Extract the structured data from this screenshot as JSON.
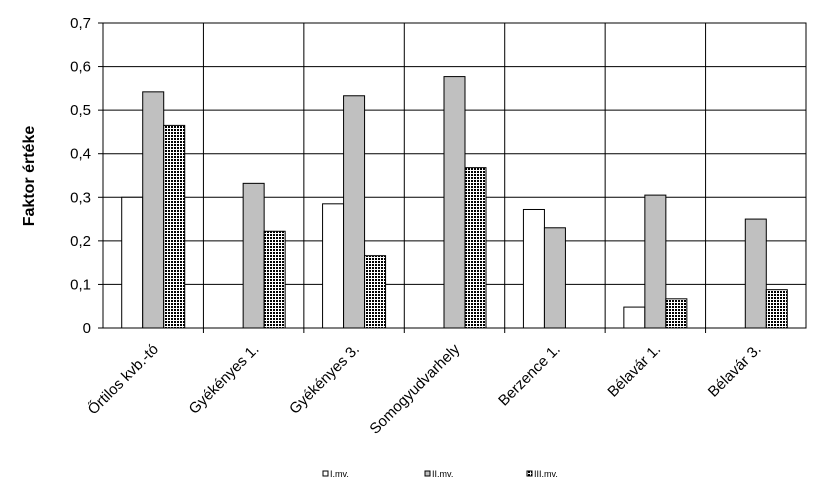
{
  "chart_data": {
    "type": "bar",
    "title": "",
    "xlabel": "",
    "ylabel": "Faktor értéke",
    "ylim": [
      0,
      0.7
    ],
    "yticks": [
      0,
      0.1,
      0.2,
      0.3,
      0.4,
      0.5,
      0.6,
      0.7
    ],
    "ytick_labels": [
      "0",
      "0,1",
      "0,2",
      "0,3",
      "0,4",
      "0,5",
      "0,6",
      "0,7"
    ],
    "categories": [
      "Őrtilos kvb.-tó",
      "Gyékényes 1.",
      "Gyékényes 3.",
      "Somogyudvarhely",
      "Berzence 1.",
      "Bélavár 1.",
      "Bélavár 3."
    ],
    "series": [
      {
        "name": "I.mv.",
        "fill": "white",
        "values": [
          0.3,
          0,
          0.285,
          0,
          0.272,
          0.048,
          0
        ]
      },
      {
        "name": "II.mv.",
        "fill": "gray",
        "values": [
          0.542,
          0.332,
          0.533,
          0.577,
          0.23,
          0.305,
          0.25
        ]
      },
      {
        "name": "III.mv.",
        "fill": "checker",
        "values": [
          0.465,
          0.222,
          0.166,
          0.368,
          0,
          0.067,
          0.088
        ]
      }
    ],
    "grid": true,
    "legend_position": "bottom"
  }
}
